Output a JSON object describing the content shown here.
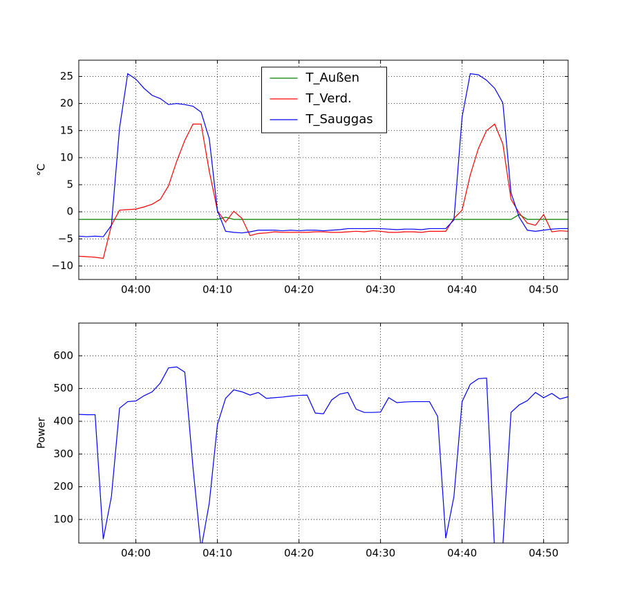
{
  "chart_data": [
    {
      "type": "line",
      "ylabel": "°C",
      "x": [
        "03:53",
        "03:54",
        "03:55",
        "03:56",
        "03:57",
        "03:58",
        "03:59",
        "04:00",
        "04:01",
        "04:02",
        "04:03",
        "04:04",
        "04:05",
        "04:06",
        "04:07",
        "04:08",
        "04:09",
        "04:10",
        "04:11",
        "04:12",
        "04:13",
        "04:14",
        "04:15",
        "04:16",
        "04:17",
        "04:18",
        "04:19",
        "04:20",
        "04:21",
        "04:22",
        "04:23",
        "04:24",
        "04:25",
        "04:26",
        "04:27",
        "04:28",
        "04:29",
        "04:30",
        "04:31",
        "04:32",
        "04:33",
        "04:34",
        "04:35",
        "04:36",
        "04:37",
        "04:38",
        "04:39",
        "04:40",
        "04:41",
        "04:42",
        "04:43",
        "04:44",
        "04:45",
        "04:46",
        "04:47",
        "04:48",
        "04:49",
        "04:50",
        "04:51",
        "04:52",
        "04:53"
      ],
      "series": [
        {
          "name": "T_Außen",
          "color": "#008000",
          "values": [
            -1.4,
            -1.4,
            -1.4,
            -1.4,
            -1.4,
            -1.4,
            -1.4,
            -1.4,
            -1.4,
            -1.4,
            -1.4,
            -1.4,
            -1.4,
            -1.4,
            -1.4,
            -1.4,
            -1.4,
            -1.4,
            -1.0,
            -1.4,
            -1.4,
            -1.4,
            -1.4,
            -1.4,
            -1.4,
            -1.4,
            -1.4,
            -1.4,
            -1.4,
            -1.4,
            -1.4,
            -1.4,
            -1.4,
            -1.4,
            -1.4,
            -1.4,
            -1.4,
            -1.4,
            -1.4,
            -1.4,
            -1.4,
            -1.4,
            -1.4,
            -1.4,
            -1.4,
            -1.4,
            -1.4,
            -1.4,
            -1.4,
            -1.4,
            -1.4,
            -1.4,
            -1.4,
            -1.4,
            -0.5,
            -1.4,
            -1.4,
            -1.4,
            -1.4,
            -1.4,
            -1.4
          ]
        },
        {
          "name": "T_Verd.",
          "color": "#ff0000",
          "values": [
            -8.2,
            -8.3,
            -8.4,
            -8.6,
            -2.5,
            0.3,
            0.4,
            0.5,
            0.9,
            1.4,
            2.3,
            4.8,
            9.3,
            13.2,
            16.2,
            16.2,
            7.5,
            0.2,
            -1.9,
            0.1,
            -1.2,
            -4.4,
            -4.0,
            -3.9,
            -3.7,
            -3.8,
            -3.8,
            -3.8,
            -3.8,
            -3.7,
            -3.7,
            -3.8,
            -3.8,
            -3.7,
            -3.6,
            -3.7,
            -3.5,
            -3.6,
            -3.8,
            -3.8,
            -3.7,
            -3.7,
            -3.8,
            -3.6,
            -3.6,
            -3.6,
            -1.2,
            0.3,
            6.8,
            11.7,
            15.0,
            16.2,
            12.5,
            2.3,
            -0.2,
            -2.1,
            -2.5,
            -0.5,
            -3.7,
            -3.5,
            -3.6
          ]
        },
        {
          "name": "T_Sauggas",
          "color": "#0000ff",
          "values": [
            -4.5,
            -4.6,
            -4.5,
            -4.6,
            -2.5,
            15.5,
            25.5,
            24.5,
            22.8,
            21.5,
            20.9,
            19.8,
            20.0,
            19.8,
            19.5,
            18.4,
            13.5,
            0.2,
            -3.6,
            -3.8,
            -3.9,
            -3.7,
            -3.4,
            -3.4,
            -3.4,
            -3.5,
            -3.4,
            -3.5,
            -3.4,
            -3.4,
            -3.5,
            -3.4,
            -3.3,
            -3.1,
            -3.1,
            -3.1,
            -3.1,
            -3.1,
            -3.2,
            -3.3,
            -3.2,
            -3.2,
            -3.3,
            -3.1,
            -3.1,
            -3.1,
            -1.5,
            17.5,
            25.5,
            25.3,
            24.3,
            22.8,
            20.1,
            3.5,
            -1.0,
            -3.4,
            -3.6,
            -3.4,
            -3.2,
            -3.1,
            -3.1
          ]
        }
      ],
      "xlim": [
        "03:53",
        "04:53"
      ],
      "xticks": [
        "04:00",
        "04:10",
        "04:20",
        "04:30",
        "04:40",
        "04:50"
      ],
      "ylim": [
        -12.5,
        28
      ],
      "yticks": [
        {
          "value": -10,
          "label": "−10"
        },
        {
          "value": -5,
          "label": "−5"
        },
        0,
        5,
        10,
        15,
        20,
        25
      ],
      "grid": true,
      "legend": "upper center"
    },
    {
      "type": "line",
      "ylabel": "Power",
      "color": "#0000ff",
      "x": [
        "03:53",
        "03:54",
        "03:55",
        "03:56",
        "03:57",
        "03:58",
        "03:59",
        "04:00",
        "04:01",
        "04:02",
        "04:03",
        "04:04",
        "04:05",
        "04:06",
        "04:07",
        "04:08",
        "04:09",
        "04:10",
        "04:11",
        "04:12",
        "04:13",
        "04:14",
        "04:15",
        "04:16",
        "04:17",
        "04:18",
        "04:19",
        "04:20",
        "04:21",
        "04:22",
        "04:23",
        "04:24",
        "04:25",
        "04:26",
        "04:27",
        "04:28",
        "04:29",
        "04:30",
        "04:31",
        "04:32",
        "04:33",
        "04:34",
        "04:35",
        "04:36",
        "04:37",
        "04:38",
        "04:39",
        "04:40",
        "04:41",
        "04:42",
        "04:43",
        "04:44",
        "04:45",
        "04:46",
        "04:47",
        "04:48",
        "04:49",
        "04:50",
        "04:51",
        "04:52",
        "04:53"
      ],
      "values": [
        421,
        420,
        420,
        40,
        170,
        440,
        460,
        462,
        478,
        490,
        517,
        563,
        566,
        550,
        260,
        10,
        150,
        390,
        470,
        496,
        490,
        480,
        488,
        470,
        472,
        474,
        477,
        479,
        480,
        425,
        423,
        465,
        483,
        488,
        437,
        427,
        427,
        428,
        472,
        457,
        459,
        460,
        460,
        460,
        415,
        43,
        170,
        460,
        513,
        530,
        532,
        0,
        20,
        427,
        450,
        463,
        488,
        472,
        485,
        468,
        475
      ],
      "xlim": [
        "03:53",
        "04:53"
      ],
      "xticks": [
        "04:00",
        "04:10",
        "04:20",
        "04:30",
        "04:40",
        "04:50"
      ],
      "ylim": [
        28,
        700
      ],
      "yticks": [
        100,
        200,
        300,
        400,
        500,
        600
      ],
      "grid": true
    }
  ]
}
